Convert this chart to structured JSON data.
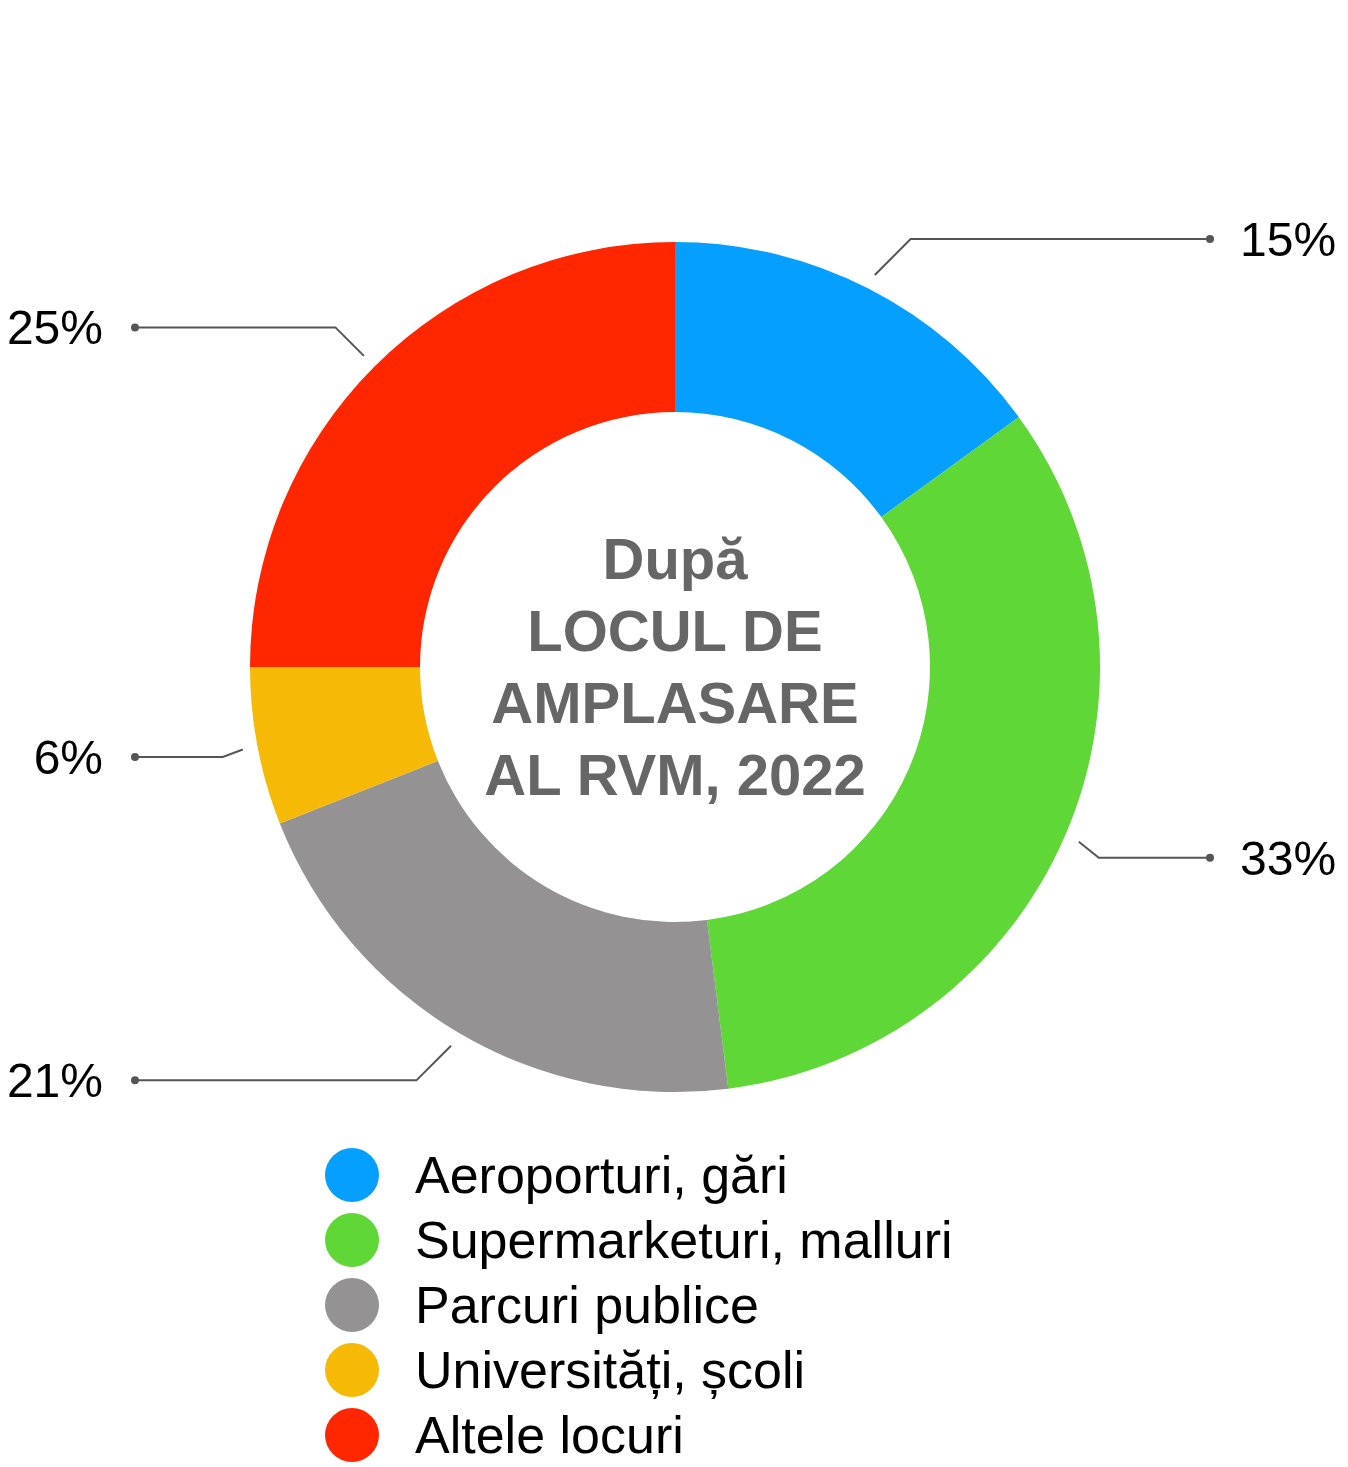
{
  "chart_data": {
    "type": "donut",
    "title": "După\nLOCUL DE\nAMPLASARE\nAL RVM, 2022",
    "categories": [
      "Aeroporturi, gări",
      "Supermarketuri, malluri",
      "Parcuri publice",
      "Universități, școli",
      "Altele locuri"
    ],
    "values": [
      15,
      33,
      21,
      6,
      25
    ],
    "colors": [
      "#05a0ff",
      "#5fd837",
      "#949293",
      "#f6b905",
      "#ff2600"
    ],
    "value_labels": [
      "15%",
      "33%",
      "21%",
      "6%",
      "25%"
    ],
    "legend": "bottom"
  }
}
